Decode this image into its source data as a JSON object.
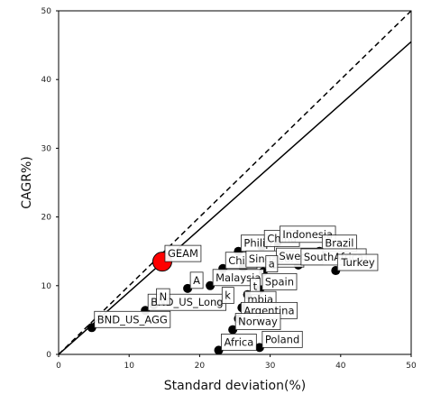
{
  "chart_data": {
    "type": "scatter",
    "title": "",
    "xlabel": "Standard deviation(%)",
    "ylabel": "CAGR%)",
    "xlim": [
      0,
      50
    ],
    "ylim": [
      0,
      50
    ],
    "x_ticks": [
      "0",
      "10",
      "20",
      "30",
      "40",
      "50"
    ],
    "y_ticks": [
      "0",
      "10",
      "20",
      "30",
      "40",
      "50"
    ],
    "grid": false,
    "lines": [
      {
        "name": "diagonal",
        "style": "dashed",
        "from": [
          0,
          0
        ],
        "to": [
          50,
          50
        ]
      },
      {
        "name": "solid",
        "style": "solid",
        "from": [
          0,
          0
        ],
        "to": [
          50,
          45.5
        ]
      }
    ],
    "highlight": {
      "label": "GEAM",
      "x": 14.7,
      "y": 13.5,
      "color": "#ff0000"
    },
    "points": [
      {
        "label": "BND_US_AGG",
        "x": 4.7,
        "y": 3.9
      },
      {
        "label": "BND_US_Long",
        "x": 12.3,
        "y": 6.4
      },
      {
        "label": "N",
        "x": 13.5,
        "y": 7.2
      },
      {
        "label": "A",
        "x": 18.3,
        "y": 9.6
      },
      {
        "label": "Malaysia",
        "x": 21.5,
        "y": 10.0
      },
      {
        "label": "k",
        "x": 22.8,
        "y": 7.4
      },
      {
        "label": "Chile",
        "x": 23.3,
        "y": 12.5
      },
      {
        "label": "Philip",
        "x": 25.5,
        "y": 15.0
      },
      {
        "label": "China",
        "x": 28.8,
        "y": 15.7
      },
      {
        "label": "Indonesia",
        "x": 31.0,
        "y": 16.3
      },
      {
        "label": "Brazil",
        "x": 37.0,
        "y": 15.0
      },
      {
        "label": "Singapore",
        "x": 26.2,
        "y": 12.7
      },
      {
        "label": "Sweden",
        "x": 30.5,
        "y": 13.1
      },
      {
        "label": "a",
        "x": 29.0,
        "y": 12.0
      },
      {
        "label": "SouthAfrica",
        "x": 34.0,
        "y": 13.0
      },
      {
        "label": "Turkey",
        "x": 39.3,
        "y": 12.2
      },
      {
        "label": "Spain",
        "x": 28.5,
        "y": 9.4
      },
      {
        "label": "t",
        "x": 26.8,
        "y": 8.7
      },
      {
        "label": "mbia",
        "x": 26.0,
        "y": 6.8
      },
      {
        "label": "Argentina",
        "x": 25.5,
        "y": 5.2
      },
      {
        "label": "Norway",
        "x": 24.7,
        "y": 3.6
      },
      {
        "label": "Africa",
        "x": 22.7,
        "y": 0.6
      },
      {
        "label": "Poland",
        "x": 28.5,
        "y": 1.0
      }
    ]
  }
}
